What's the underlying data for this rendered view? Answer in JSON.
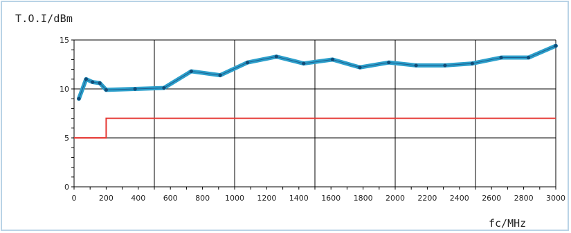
{
  "chart_data": {
    "type": "line",
    "title": "",
    "ylabel": "T.O.I/dBm",
    "xlabel": "fc/MHz",
    "xlim": [
      0,
      3000
    ],
    "ylim": [
      0,
      15
    ],
    "x_ticks": [
      0,
      200,
      400,
      600,
      800,
      1000,
      1200,
      1400,
      1600,
      1800,
      2000,
      2200,
      2400,
      2600,
      2800,
      3000
    ],
    "y_ticks": [
      0,
      5,
      10,
      15
    ],
    "grid": true,
    "series": [
      {
        "color": "#2c9fcb",
        "marker_color": "#104c78",
        "x": [
          30,
          75,
          115,
          160,
          200,
          380,
          560,
          730,
          910,
          1080,
          1260,
          1430,
          1610,
          1780,
          1960,
          2130,
          2310,
          2480,
          2660,
          2830,
          3000
        ],
        "y": [
          9.0,
          11.0,
          10.7,
          10.6,
          9.9,
          10.0,
          10.1,
          11.8,
          11.4,
          12.7,
          13.3,
          12.6,
          13.0,
          12.2,
          12.7,
          12.4,
          12.4,
          12.6,
          13.2,
          13.2,
          14.4
        ]
      },
      {
        "color": "#e53935",
        "step": true,
        "x": [
          0,
          200,
          200,
          3000
        ],
        "y": [
          5,
          5,
          7,
          7
        ]
      }
    ]
  }
}
